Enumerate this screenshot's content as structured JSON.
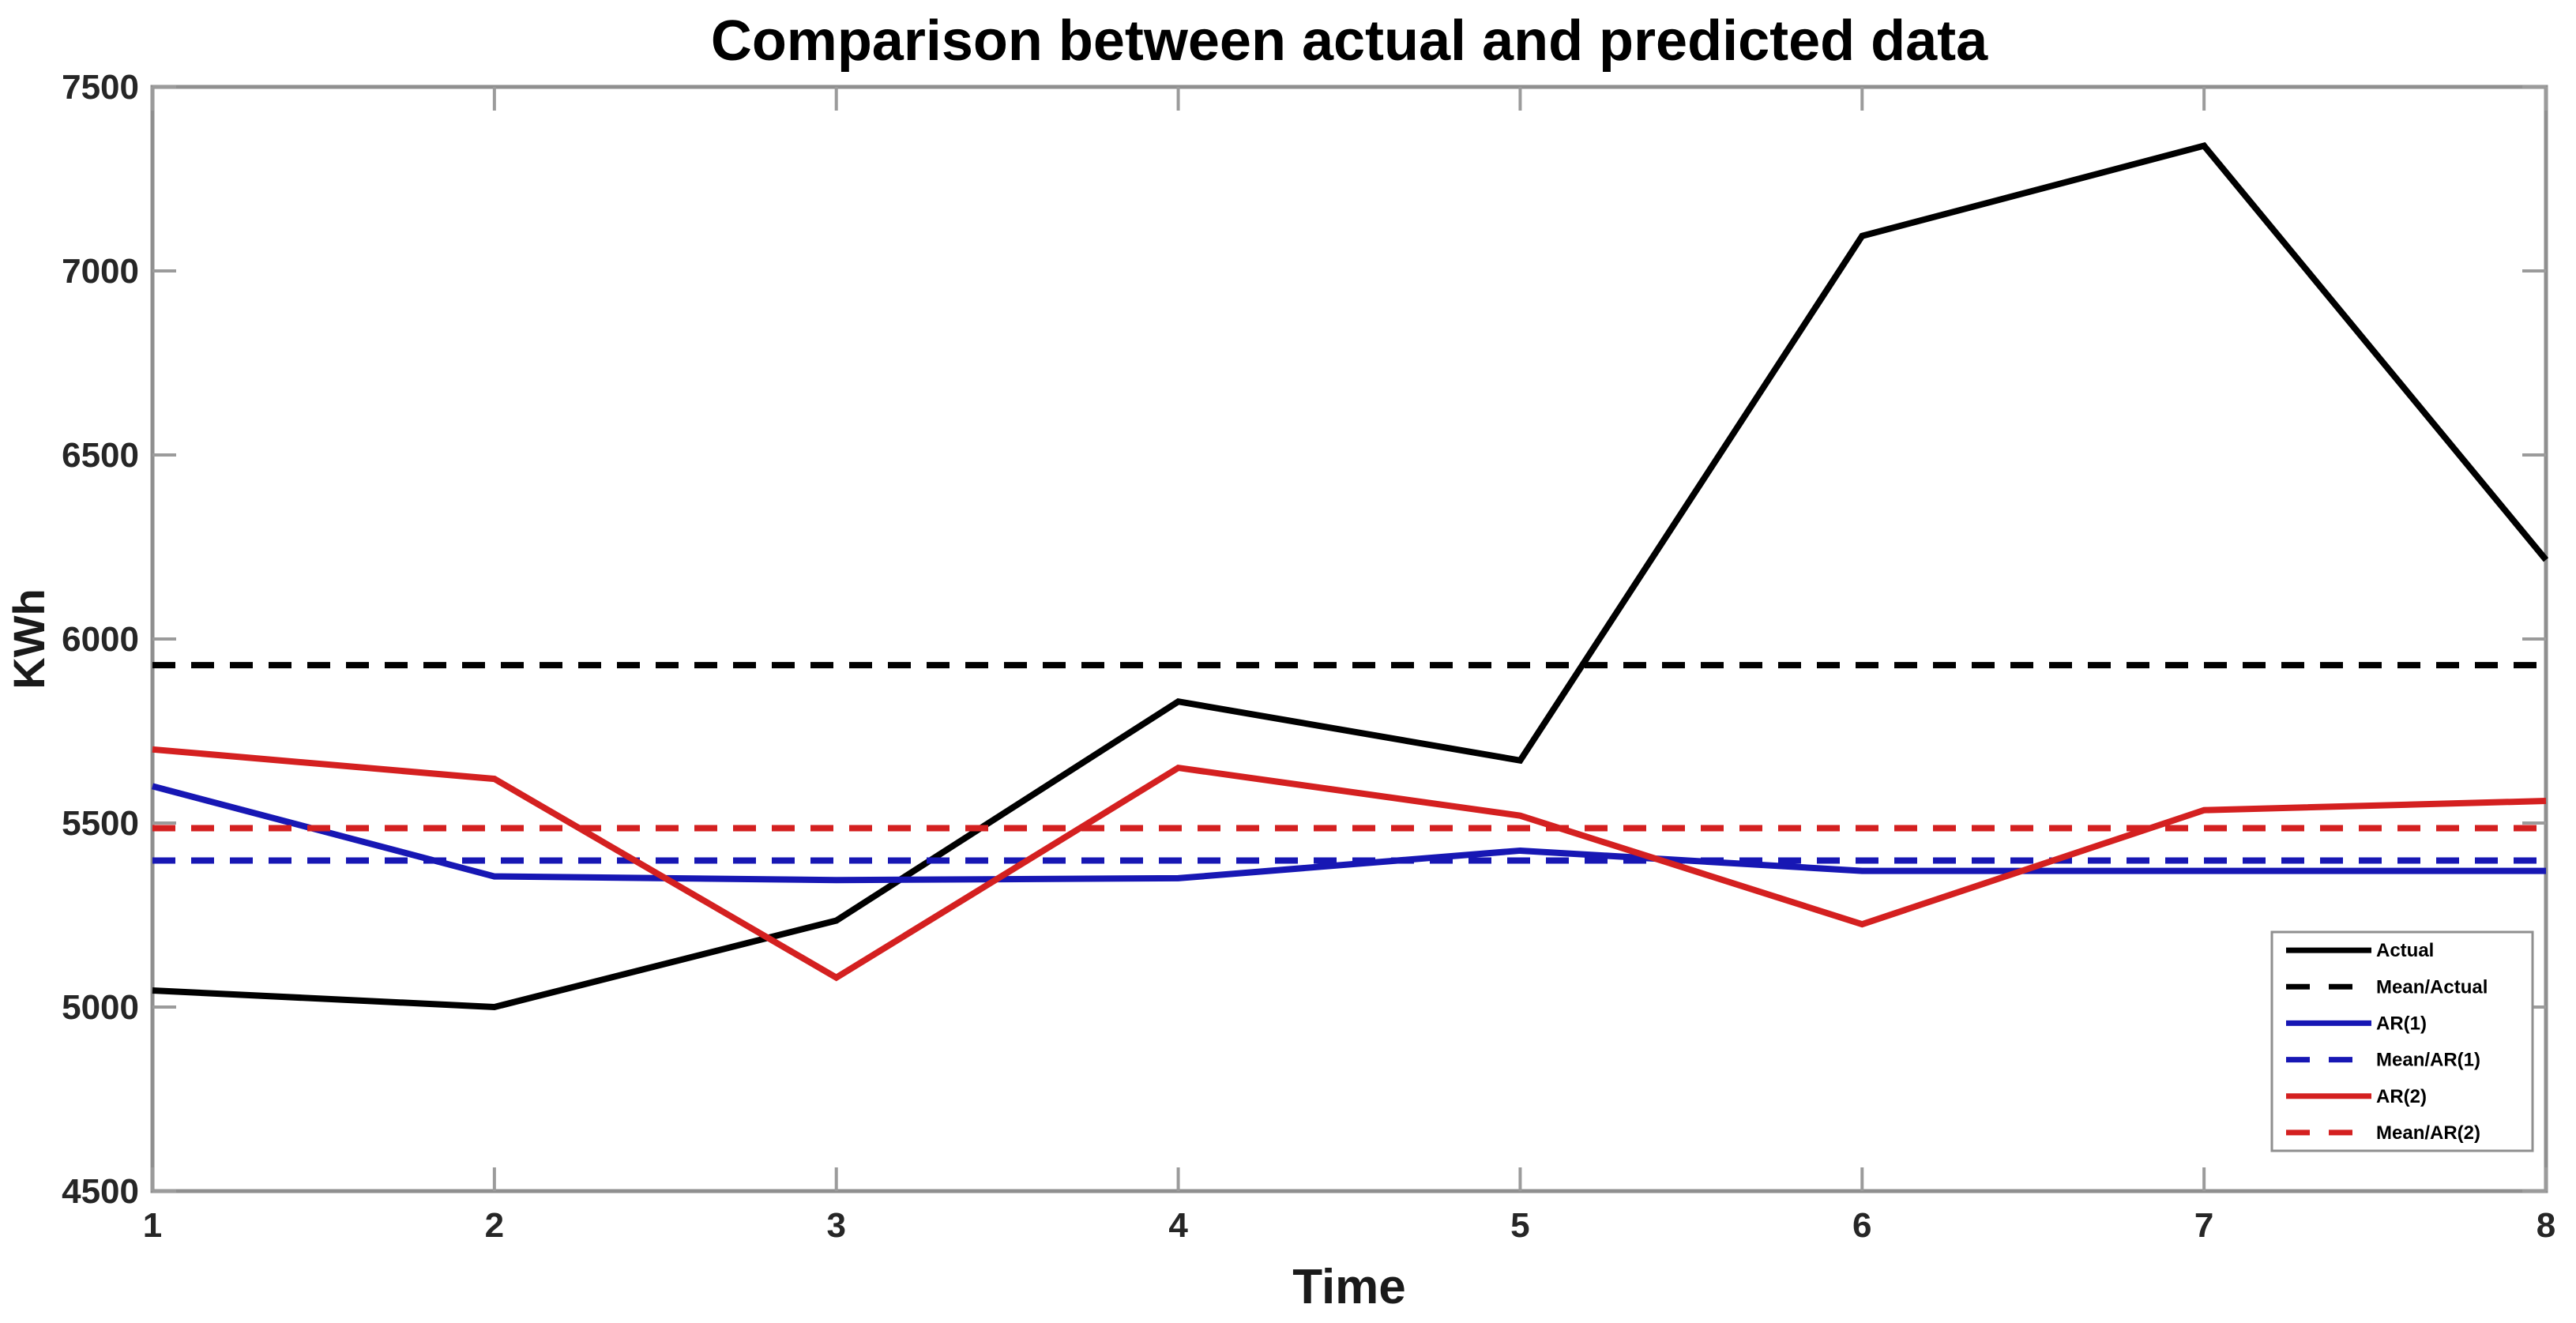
{
  "chart_data": {
    "type": "line",
    "title": "Comparison between actual and predicted data",
    "xlabel": "Time",
    "ylabel": "KWh",
    "x": [
      1,
      2,
      3,
      4,
      5,
      6,
      7,
      8
    ],
    "x_tick_labels": [
      "1",
      "2",
      "3",
      "4",
      "5",
      "6",
      "7",
      "8"
    ],
    "y_ticks": [
      4500,
      5000,
      5500,
      6000,
      6500,
      7000,
      7500
    ],
    "y_tick_labels": [
      "4500",
      "5000",
      "5500",
      "6000",
      "6500",
      "7000",
      "7500"
    ],
    "xlim": [
      1,
      8
    ],
    "ylim": [
      4500,
      7500
    ],
    "grid": false,
    "legend_position": "bottom-right",
    "series": [
      {
        "name": "Actual",
        "style": "solid",
        "color": "#000000",
        "values": [
          5045,
          5000,
          5235,
          5830,
          5670,
          7095,
          7340,
          6215
        ]
      },
      {
        "name": "Mean/Actual",
        "style": "dashed",
        "color": "#000000",
        "constant": 5929
      },
      {
        "name": "AR(1)",
        "style": "solid",
        "color": "#1717b4",
        "values": [
          5600,
          5355,
          5345,
          5350,
          5425,
          5370,
          5370,
          5370
        ]
      },
      {
        "name": "Mean/AR(1)",
        "style": "dashed",
        "color": "#1717b4",
        "constant": 5398
      },
      {
        "name": "AR(2)",
        "style": "solid",
        "color": "#d42020",
        "values": [
          5700,
          5620,
          5080,
          5650,
          5520,
          5225,
          5535,
          5560
        ]
      },
      {
        "name": "Mean/AR(2)",
        "style": "dashed",
        "color": "#d42020",
        "constant": 5486
      }
    ],
    "axis_color": "#8f8f8f",
    "tick_color": "#9b9b9b"
  }
}
